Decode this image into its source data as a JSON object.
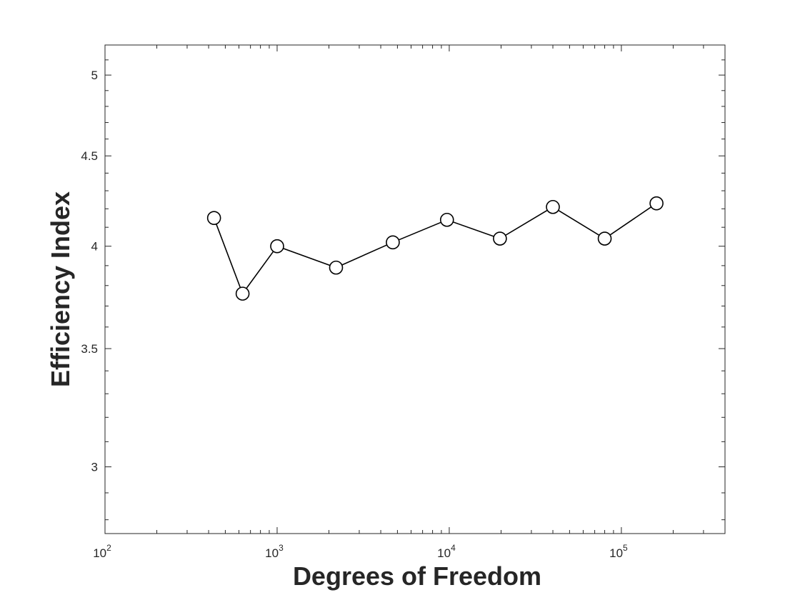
{
  "chart_data": {
    "type": "line",
    "xlabel": "Degrees of Freedom",
    "ylabel": "Efficiency Index",
    "xscale": "log",
    "yscale": "log",
    "xlim": [
      100,
      400000
    ],
    "ylim": [
      2.75,
      5.2
    ],
    "grid": false,
    "box": true,
    "x_ticks": [
      {
        "base": "10",
        "exp": "2",
        "value": 100
      },
      {
        "base": "10",
        "exp": "3",
        "value": 1000
      },
      {
        "base": "10",
        "exp": "4",
        "value": 10000
      },
      {
        "base": "10",
        "exp": "5",
        "value": 100000
      }
    ],
    "y_ticks": [
      {
        "label": "3",
        "value": 3
      },
      {
        "label": "3.5",
        "value": 3.5
      },
      {
        "label": "4",
        "value": 4
      },
      {
        "label": "4.5",
        "value": 4.5
      },
      {
        "label": "5",
        "value": 5
      }
    ],
    "series": [
      {
        "marker": "circle",
        "color": "#000000",
        "x": [
          430,
          630,
          1000,
          2200,
          4700,
          9700,
          19700,
          40000,
          80000,
          160000
        ],
        "y": [
          4.15,
          3.76,
          4.0,
          3.89,
          4.02,
          4.14,
          4.04,
          4.21,
          4.04,
          4.23
        ]
      }
    ]
  }
}
